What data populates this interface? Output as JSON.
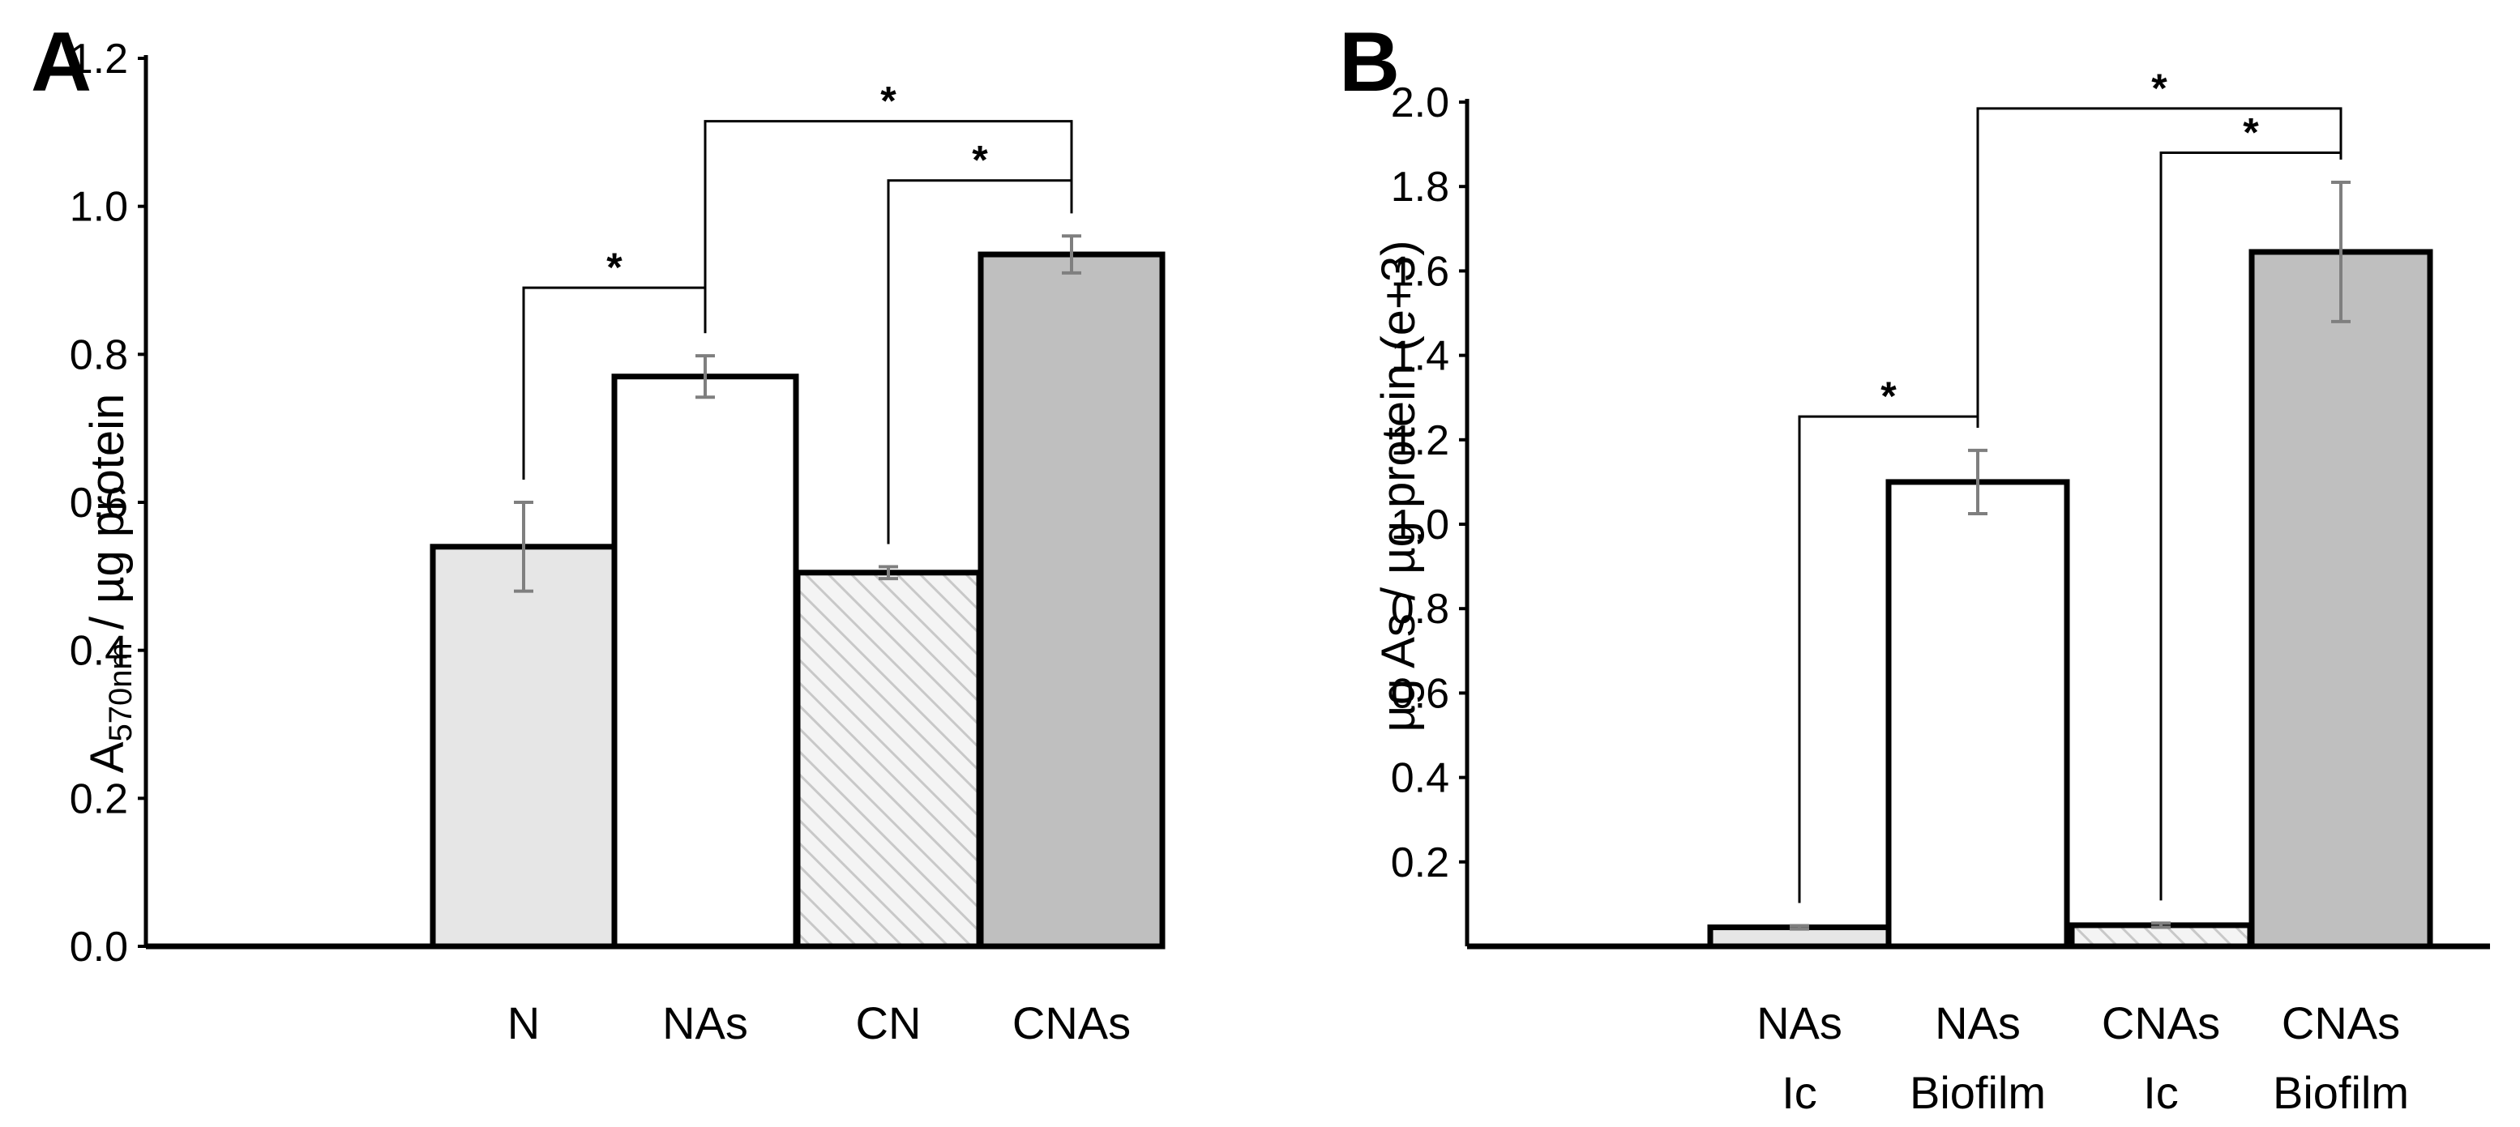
{
  "colors": {
    "light_gray": "#e6e6e6",
    "white": "#ffffff",
    "dark_gray": "#bfbfbf",
    "hatch": "#cccccc",
    "error_bar": "#7f7f7f",
    "outline": "#000000"
  },
  "chart_data": [
    {
      "type": "bar",
      "panel": "A",
      "categories": [
        "N",
        "NAs",
        "CN",
        "CNAs"
      ],
      "values": [
        0.54,
        0.77,
        0.505,
        0.935
      ],
      "errors": [
        0.06,
        0.028,
        0.008,
        0.025
      ],
      "fills": [
        "light_gray",
        "white",
        "hatch",
        "dark_gray"
      ],
      "title": "",
      "xlabel": "",
      "ylabel_main": "A",
      "ylabel_sub": "570nm",
      "ylabel_rest": " / µg protein",
      "ylim": [
        0,
        1.2
      ],
      "yticks": [
        "0.0",
        "0.2",
        "0.4",
        "0.6",
        "0.8",
        "1.0",
        "1.2"
      ],
      "yticks_values": [
        0,
        0.2,
        0.4,
        0.6,
        0.8,
        1.0,
        1.2
      ],
      "significance": [
        {
          "from": 0,
          "to": 1,
          "label": "*",
          "level": 0.89
        },
        {
          "from": 2,
          "to": 3,
          "label": "*",
          "level": 1.035
        },
        {
          "from": 1,
          "to": 3,
          "label": "*",
          "level": 1.115
        }
      ]
    },
    {
      "type": "bar",
      "panel": "B",
      "categories": [
        "NAs\nIc",
        "NAs\nBiofilm",
        "CNAs\nIc",
        "CNAs\nBiofilm"
      ],
      "values": [
        0.045,
        1.1,
        0.05,
        1.645
      ],
      "errors": [
        0.004,
        0.075,
        0.005,
        0.165
      ],
      "fills": [
        "light_gray",
        "white",
        "hatch",
        "dark_gray"
      ],
      "title": "",
      "xlabel": "",
      "ylabel": "µg As / µg protein (e+3)",
      "ylim": [
        0,
        2.0
      ],
      "yticks": [
        "0.2",
        "0.4",
        "0.6",
        "0.8",
        "1.0",
        "1.2",
        "1.4",
        "1.6",
        "1.8",
        "2.0"
      ],
      "yticks_values": [
        0.2,
        0.4,
        0.6,
        0.8,
        1.0,
        1.2,
        1.4,
        1.6,
        1.8,
        2.0
      ],
      "significance": [
        {
          "from": 0,
          "to": 1,
          "label": "*",
          "level": 1.255
        },
        {
          "from": 2,
          "to": 3,
          "label": "*",
          "level": 1.88
        },
        {
          "from": 1,
          "to": 3,
          "label": "*",
          "level": 1.985
        }
      ]
    }
  ]
}
